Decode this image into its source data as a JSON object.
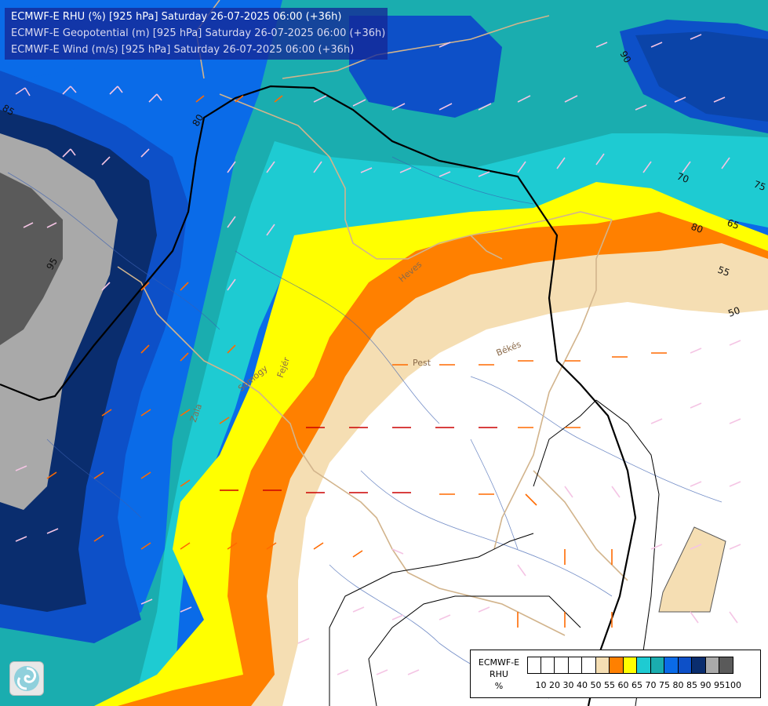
{
  "title": {
    "line1": "ECMWF-E RHU (%) [925 hPa] Saturday 26-07-2025 06:00 (+36h)",
    "line2": "ECMWF-E Geopotential (m) [925 hPa] Saturday 26-07-2025 06:00 (+36h)",
    "line3": "ECMWF-E Wind (m/s) [925 hPa] Saturday 26-07-2025 06:00 (+36h)"
  },
  "legend": {
    "title_lines": [
      "ECMWF-E",
      "RHU",
      "%"
    ],
    "colors": [
      "#ffffff",
      "#ffffff",
      "#ffffff",
      "#ffffff",
      "#ffffff",
      "#f5deb3",
      "#ff8000",
      "#ffff00",
      "#1ecbd2",
      "#1aadaf",
      "#0a6be8",
      "#0d50c8",
      "#0a2d6e",
      "#a9a9a9",
      "#5a5a5a"
    ],
    "ticks": [
      "10",
      "20",
      "30",
      "40",
      "50",
      "55",
      "60",
      "65",
      "70",
      "75",
      "80",
      "85",
      "90",
      "95",
      "100"
    ]
  },
  "contour_labels": [
    "80",
    "85",
    "95",
    "90",
    "70",
    "75",
    "80",
    "65",
    "55",
    "50"
  ],
  "place_names": [
    "Pest",
    "Békés",
    "Somogy",
    "Fejér",
    "Zala",
    "Heves"
  ],
  "logo_icon": "cyclone-logo-icon"
}
